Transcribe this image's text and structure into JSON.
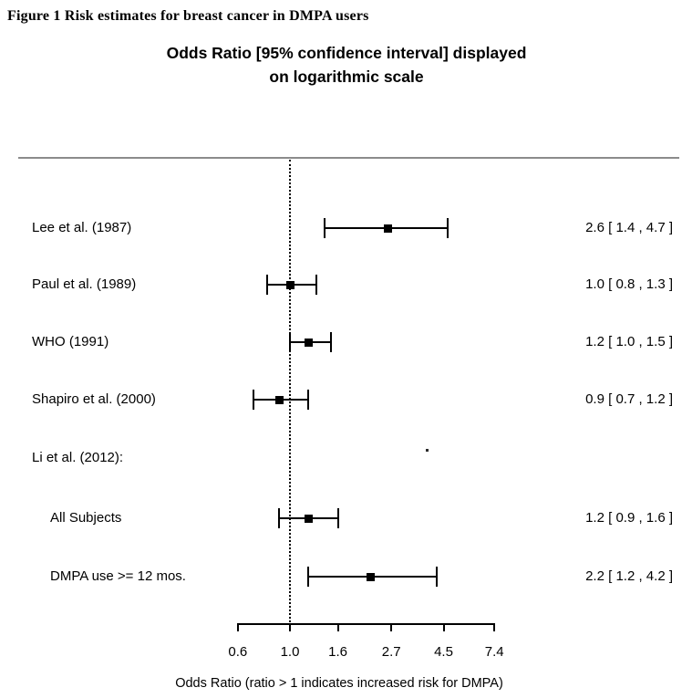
{
  "figure": {
    "caption": "Figure 1 Risk estimates for breast cancer in DMPA users"
  },
  "chart": {
    "title_line1": "Odds Ratio [95% confidence interval] displayed",
    "title_line2": "on logarithmic scale",
    "xlabel": "Odds Ratio (ratio > 1 indicates increased risk for DMPA)"
  },
  "chart_data": {
    "type": "forest",
    "scale": "log",
    "x_ticks": [
      0.6,
      1.0,
      1.6,
      2.7,
      4.5,
      7.4
    ],
    "x_range": [
      0.6,
      7.4
    ],
    "reference_value": 1.0,
    "grid": false,
    "studies": [
      {
        "label": "Lee et al. (1987)",
        "indent": false,
        "or": 2.6,
        "ci_low": 1.4,
        "ci_high": 4.7,
        "display": "2.6 [ 1.4 , 4.7 ]"
      },
      {
        "label": "Paul et al. (1989)",
        "indent": false,
        "or": 1.0,
        "ci_low": 0.8,
        "ci_high": 1.3,
        "display": "1.0 [ 0.8 , 1.3 ]"
      },
      {
        "label": "WHO (1991)",
        "indent": false,
        "or": 1.2,
        "ci_low": 1.0,
        "ci_high": 1.5,
        "display": "1.2 [ 1.0 , 1.5 ]"
      },
      {
        "label": "Shapiro et al. (2000)",
        "indent": false,
        "or": 0.9,
        "ci_low": 0.7,
        "ci_high": 1.2,
        "display": "0.9 [ 0.7 , 1.2 ]"
      },
      {
        "label": "Li et al. (2012):",
        "indent": false,
        "or": null,
        "ci_low": null,
        "ci_high": null,
        "display": ""
      },
      {
        "label": "All Subjects",
        "indent": true,
        "or": 1.2,
        "ci_low": 0.9,
        "ci_high": 1.6,
        "display": "1.2 [ 0.9 , 1.6 ]"
      },
      {
        "label": "DMPA use >= 12 mos.",
        "indent": true,
        "or": 2.2,
        "ci_low": 1.2,
        "ci_high": 4.2,
        "display": "2.2 [ 1.2 , 4.2 ]"
      }
    ]
  },
  "colors": {
    "separator": "#8b8b8b",
    "bar": "#000000",
    "text": "#000000",
    "background": "#ffffff"
  }
}
